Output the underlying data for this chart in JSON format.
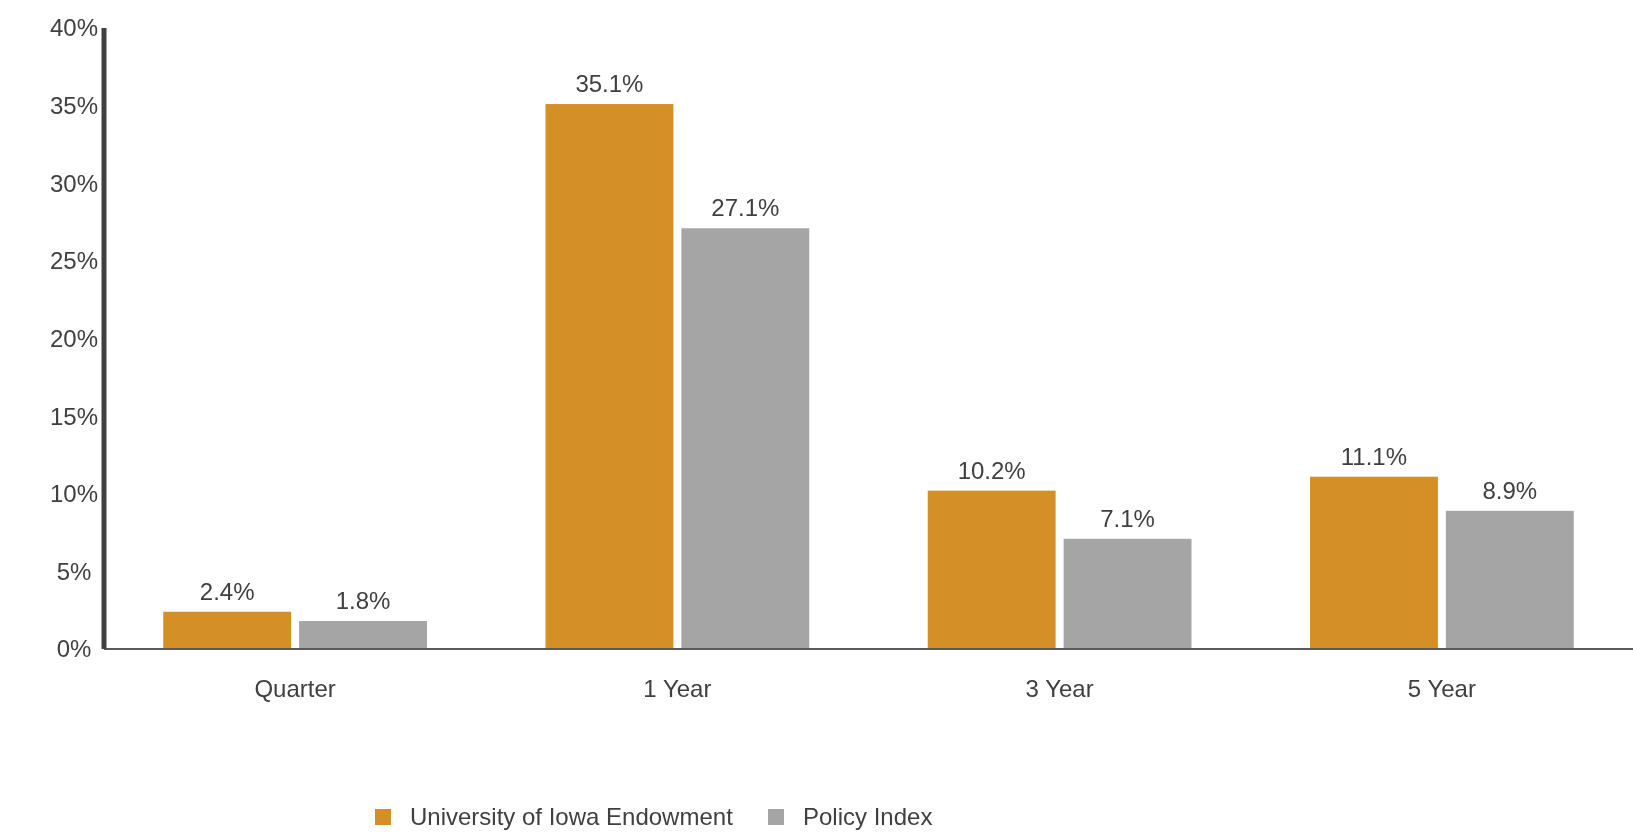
{
  "chart_data": {
    "type": "bar",
    "categories": [
      "Quarter",
      "1 Year",
      "3 Year",
      "5 Year"
    ],
    "series": [
      {
        "name": "University of Iowa Endowment",
        "color": "#d58f27",
        "values": [
          2.4,
          35.1,
          10.2,
          11.1
        ],
        "value_labels": [
          "2.4%",
          "35.1%",
          "10.2%",
          "11.1%"
        ]
      },
      {
        "name": "Policy Index",
        "color": "#a5a5a5",
        "values": [
          1.8,
          27.1,
          7.1,
          8.9
        ],
        "value_labels": [
          "1.8%",
          "27.1%",
          "7.1%",
          "8.9%"
        ]
      }
    ],
    "ylim": [
      0,
      40
    ],
    "yticks": [
      {
        "value": 0,
        "label": "0%"
      },
      {
        "value": 5,
        "label": "5%"
      },
      {
        "value": 10,
        "label": "10%"
      },
      {
        "value": 15,
        "label": "15%"
      },
      {
        "value": 20,
        "label": "20%"
      },
      {
        "value": 25,
        "label": "25%"
      },
      {
        "value": 30,
        "label": "30%"
      },
      {
        "value": 35,
        "label": "35%"
      },
      {
        "value": 40,
        "label": "40%"
      }
    ],
    "legend": "bottom"
  }
}
